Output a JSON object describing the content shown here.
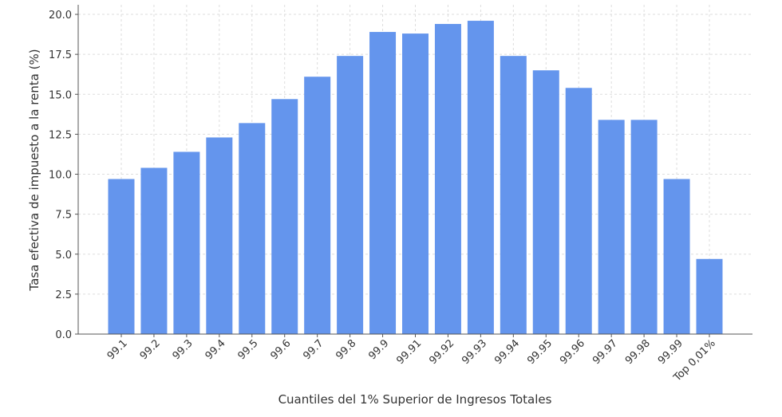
{
  "chart_data": {
    "type": "bar",
    "x_label": "Cuantiles del 1% Superior de Ingresos Totales",
    "y_label": "Tasa efectiva de impuesto a la renta (%)",
    "categories": [
      "99.1",
      "99.2",
      "99.3",
      "99.4",
      "99.5",
      "99.6",
      "99.7",
      "99.8",
      "99.9",
      "99.91",
      "99.92",
      "99.93",
      "99.94",
      "99.95",
      "99.96",
      "99.97",
      "99.98",
      "99.99",
      "Top 0,01%"
    ],
    "values": [
      9.7,
      10.4,
      11.4,
      12.3,
      13.2,
      14.7,
      16.1,
      17.4,
      18.9,
      18.8,
      19.4,
      19.6,
      17.4,
      16.5,
      15.4,
      13.4,
      13.4,
      9.7,
      4.7
    ],
    "color": "#6495ed",
    "ylim": [
      0,
      20.6
    ],
    "yticks": [
      {
        "value": 0,
        "label": "0.0"
      },
      2.5,
      {
        "value": 5,
        "label": "5.0"
      },
      7.5,
      {
        "value": 10,
        "label": "10.0"
      },
      12.5,
      {
        "value": 15,
        "label": "15.0"
      },
      17.5,
      {
        "value": 20,
        "label": "20.0"
      }
    ],
    "grid": true
  }
}
